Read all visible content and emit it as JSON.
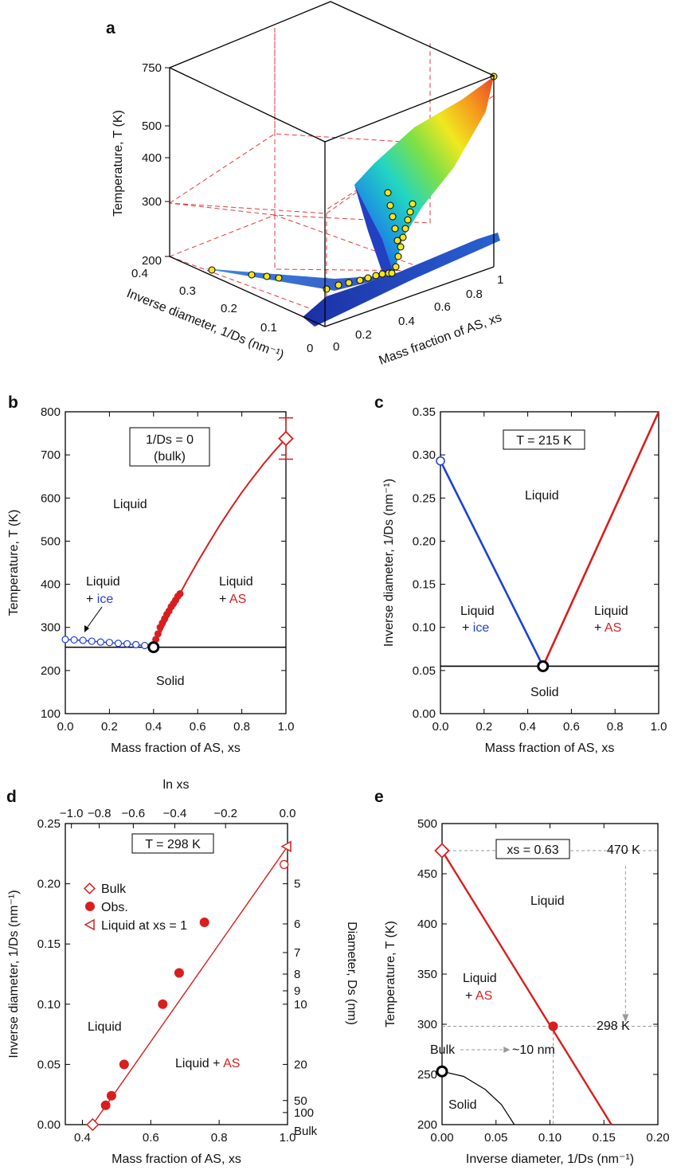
{
  "panels": {
    "a": {
      "label": "a",
      "z_axis": {
        "label": "Temperature, T (K)",
        "ticks": [
          "200",
          "300",
          "400",
          "500",
          "750"
        ]
      },
      "inv_axis": {
        "label": "Inverse diameter, 1/Ds (nm⁻¹)",
        "ticks": [
          "0",
          "0.1",
          "0.2",
          "0.3",
          "0.4"
        ]
      },
      "x_axis": {
        "label": "Mass fraction of AS, xs",
        "ticks": [
          "0",
          "0.2",
          "0.4",
          "0.6",
          "0.8",
          "1"
        ]
      },
      "colors": {
        "ice_surface": "#2453c6",
        "as_surface_hot": "#e8452a",
        "points": "#f2e521"
      }
    },
    "b": {
      "label": "b",
      "box": [
        "1/Ds = 0",
        "(bulk)"
      ],
      "regions": {
        "liquid": "Liquid",
        "liquid_ice_1": "Liquid",
        "liquid_ice_2": "+ ",
        "ice": "ice",
        "liquid_as_1": "Liquid",
        "liquid_as_2": "+ ",
        "as": "AS",
        "solid": "Solid"
      }
    },
    "c": {
      "label": "c",
      "box": "T = 215 K",
      "regions": {
        "liquid": "Liquid",
        "liquid_ice_1": "Liquid",
        "liquid_ice_2": "+ ",
        "ice": "ice",
        "liquid_as_1": "Liquid",
        "liquid_as_2": "+ ",
        "as": "AS",
        "solid": "Solid"
      }
    },
    "d": {
      "label": "d",
      "box": "T = 298 K",
      "legend": [
        "Bulk",
        "Obs.",
        "Liquid at xs = 1"
      ],
      "regions": {
        "liquid": "Liquid",
        "liquid_as": "Liquid + ",
        "as": "AS"
      },
      "top_axis_label": "ln xs",
      "right_axis_label": "Diameter, Ds (nm)",
      "right_ticks": [
        "5",
        "6",
        "7",
        "8",
        "9",
        "10",
        "20",
        "50",
        "100",
        "Bulk"
      ]
    },
    "e": {
      "label": "e",
      "box": "xs = 0.63",
      "annotations": {
        "t470": "470 K",
        "t298": "298 K",
        "bulk": "Bulk",
        "d10": "~10 nm"
      },
      "regions": {
        "liquid": "Liquid",
        "liquid_as_1": "Liquid",
        "liquid_as_2": "+ ",
        "as": "AS",
        "solid": "Solid"
      }
    }
  },
  "chart_data": [
    {
      "panel": "b",
      "type": "line",
      "xlabel": "Mass fraction of AS, xs",
      "ylabel": "Temperature, T (K)",
      "xlim": [
        0,
        1
      ],
      "ylim": [
        100,
        800
      ],
      "xticks": [
        "0.0",
        "0.2",
        "0.4",
        "0.6",
        "0.8",
        "1.0"
      ],
      "yticks": [
        "100",
        "200",
        "300",
        "400",
        "500",
        "600",
        "700",
        "800"
      ],
      "series": [
        {
          "values": [
            [
              0.0,
              272
            ],
            [
              0.04,
              271
            ],
            [
              0.08,
              270
            ],
            [
              0.12,
              268
            ],
            [
              0.16,
              266
            ],
            [
              0.2,
              265
            ],
            [
              0.24,
              263
            ],
            [
              0.28,
              262
            ],
            [
              0.32,
              260
            ],
            [
              0.36,
              258
            ],
            [
              0.4,
              254
            ]
          ],
          "color": "#1f3fd6"
        },
        {
          "values": [
            [
              0.4,
              254
            ],
            [
              0.45,
              308
            ],
            [
              0.5,
              360
            ],
            [
              0.55,
              407
            ],
            [
              0.6,
              452
            ],
            [
              0.65,
              495
            ],
            [
              0.7,
              537
            ],
            [
              0.75,
              576
            ],
            [
              0.8,
              613
            ],
            [
              0.85,
              647
            ],
            [
              0.9,
              680
            ],
            [
              0.95,
              710
            ],
            [
              1.0,
              738
            ]
          ],
          "color": "#d81e1e"
        },
        {
          "values": [
            [
              0.41,
              272
            ],
            [
              0.42,
              285
            ],
            [
              0.43,
              300
            ],
            [
              0.44,
              310
            ],
            [
              0.45,
              320
            ],
            [
              0.46,
              330
            ],
            [
              0.47,
              338
            ],
            [
              0.48,
              348
            ],
            [
              0.49,
              355
            ],
            [
              0.5,
              363
            ],
            [
              0.51,
              372
            ],
            [
              0.52,
              378
            ]
          ],
          "color": "#d81e1e"
        }
      ],
      "eutectic": [
        0.4,
        254
      ],
      "solidus": 254,
      "bulk_point": [
        1.0,
        738
      ],
      "bulk_error": [
        690,
        786
      ]
    },
    {
      "panel": "c",
      "type": "line",
      "xlabel": "Mass fraction of AS, xs",
      "ylabel": "Inverse diameter, 1/Ds (nm⁻¹)",
      "xlim": [
        0,
        1
      ],
      "ylim": [
        0,
        0.35
      ],
      "xticks": [
        "0.0",
        "0.2",
        "0.4",
        "0.6",
        "0.8",
        "1.0"
      ],
      "yticks": [
        "0.00",
        "0.05",
        "0.10",
        "0.15",
        "0.20",
        "0.25",
        "0.30",
        "0.35"
      ],
      "series": [
        {
          "values": [
            [
              0.0,
              0.293
            ],
            [
              0.47,
              0.055
            ]
          ],
          "color": "#1f3fd6"
        },
        {
          "values": [
            [
              0.47,
              0.055
            ],
            [
              1.0,
              0.35
            ]
          ],
          "color": "#d81e1e"
        }
      ],
      "solidus": 0.055,
      "eutectic": [
        0.47,
        0.055
      ],
      "open_point": [
        0.0,
        0.293
      ]
    },
    {
      "panel": "d",
      "type": "scatter",
      "xlabel": "Mass fraction of AS, xs",
      "ylabel": "Inverse diameter, 1/Ds (nm⁻¹)",
      "xlim": [
        0.35,
        1.0
      ],
      "ylim": [
        0,
        0.25
      ],
      "xticks": [
        "0.4",
        "0.6",
        "0.8",
        "1.0"
      ],
      "yticks": [
        "0.00",
        "0.05",
        "0.10",
        "0.15",
        "0.20",
        "0.25"
      ],
      "top_ticks": [
        "−1.0",
        "−0.8",
        "−0.6",
        "−0.4",
        "−0.2",
        "0.0"
      ],
      "series": [
        {
          "name": "Bulk",
          "values": [
            [
              0.43,
              0.0
            ]
          ]
        },
        {
          "name": "Obs.",
          "values": [
            [
              0.468,
              0.016
            ],
            [
              0.485,
              0.024
            ],
            [
              0.522,
              0.05
            ],
            [
              0.635,
              0.1
            ],
            [
              0.683,
              0.126
            ],
            [
              0.757,
              0.168
            ]
          ]
        },
        {
          "name": "Liquid at xs = 1",
          "values": [
            [
              1.0,
              0.231
            ]
          ]
        }
      ],
      "open_circle": [
        0.99,
        0.216
      ],
      "fit_line": [
        [
          0.43,
          0.0
        ],
        [
          1.0,
          0.231
        ]
      ]
    },
    {
      "panel": "e",
      "type": "line",
      "xlabel": "Inverse diameter, 1/Ds (nm⁻¹)",
      "ylabel": "Temperature, T (K)",
      "xlim": [
        0,
        0.2
      ],
      "ylim": [
        200,
        500
      ],
      "xticks": [
        "0.00",
        "0.05",
        "0.10",
        "0.15",
        "0.20"
      ],
      "yticks": [
        "200",
        "250",
        "300",
        "350",
        "400",
        "450",
        "500"
      ],
      "series": [
        {
          "values": [
            [
              0.0,
              473
            ],
            [
              0.157,
              200
            ]
          ],
          "color": "#d81e1e"
        },
        {
          "values": [
            [
              0.0,
              253
            ],
            [
              0.02,
              248
            ],
            [
              0.04,
              235
            ],
            [
              0.055,
              220
            ],
            [
              0.067,
              200
            ]
          ],
          "color": "#000000"
        }
      ],
      "points": {
        "bulk_diamond": [
          0.0,
          473
        ],
        "obs": [
          0.103,
          298
        ],
        "eutectic": [
          0.0,
          253
        ]
      }
    }
  ]
}
